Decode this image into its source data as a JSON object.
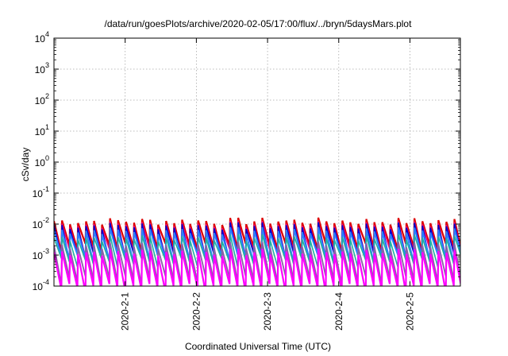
{
  "chart_data": {
    "type": "line",
    "title": "/data/run/goesPlots/archive/2020-02-05/17:00/flux/../bryn/5daysMars.plot",
    "xlabel": "Coordinated Universal Time (UTC)",
    "ylabel": "cSv/day",
    "x_range": [
      "2020-01-31T00:00",
      "2020-02-05T17:00"
    ],
    "x_ticks": [
      "2020-2-1",
      "2020-2-2",
      "2020-2-3",
      "2020-2-4",
      "2020-2-5"
    ],
    "y_scale": "log",
    "ylim": [
      0.0001,
      10000
    ],
    "y_ticks": [
      {
        "base": "10",
        "exp": "-4"
      },
      {
        "base": "10",
        "exp": "-3"
      },
      {
        "base": "10",
        "exp": "-2"
      },
      {
        "base": "10",
        "exp": "-1"
      },
      {
        "base": "10",
        "exp": "0"
      },
      {
        "base": "10",
        "exp": "1"
      },
      {
        "base": "10",
        "exp": "2"
      },
      {
        "base": "10",
        "exp": "3"
      },
      {
        "base": "10",
        "exp": "4"
      }
    ],
    "grid": true,
    "legend": "none",
    "sawtooth_period_hours": 2.7,
    "series": [
      {
        "color": "#dd0000",
        "peak": 0.012,
        "trough": 0.0018,
        "stroke": 2.2
      },
      {
        "color": "#e8007a",
        "peak": 0.0095,
        "trough": 0.0012,
        "stroke": 1.6
      },
      {
        "color": "#0000cc",
        "peak": 0.0085,
        "trough": 0.0009,
        "stroke": 1.6
      },
      {
        "color": "#2a7fff",
        "peak": 0.006,
        "trough": 0.0008,
        "stroke": 2.0
      },
      {
        "color": "#20b0a0",
        "peak": 0.0035,
        "trough": 0.0006,
        "stroke": 1.6
      },
      {
        "color": "#8a5fa8",
        "peak": 0.002,
        "trough": 0.00016,
        "stroke": 1.8
      },
      {
        "color": "#ff00ff",
        "peak": 0.0012,
        "trough": 9e-05,
        "stroke": 2.2
      }
    ]
  }
}
